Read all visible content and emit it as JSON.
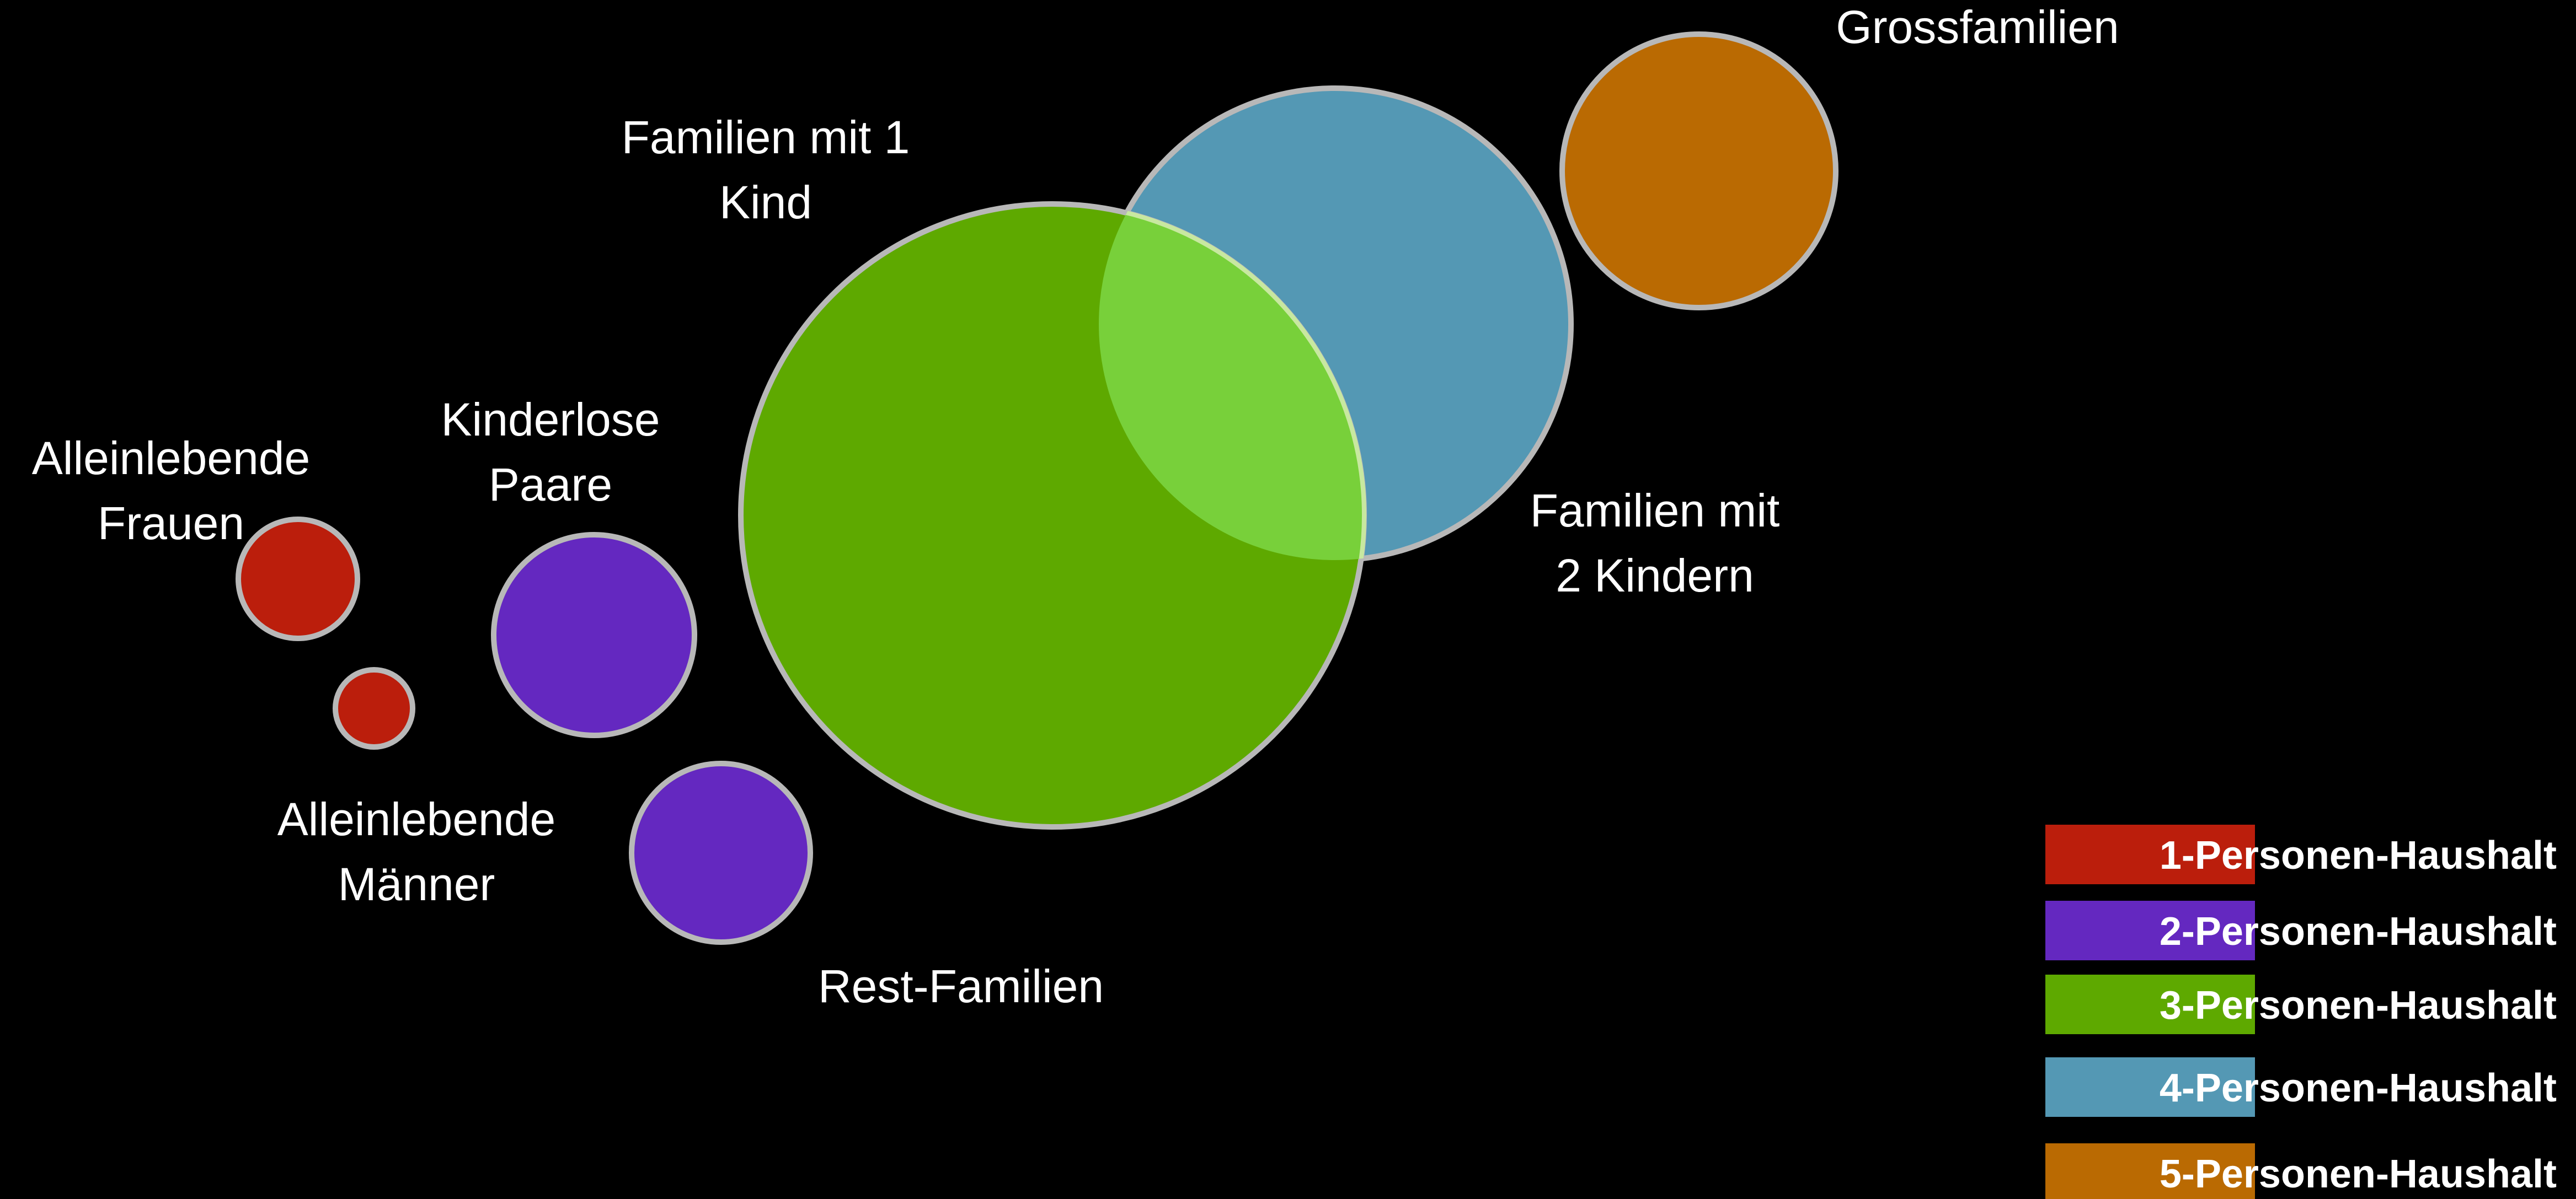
{
  "colors": {
    "background": "#000000",
    "outline": "#b8b8b8",
    "overlap": "#78d03a"
  },
  "groups": [
    {
      "id": "alleinlebende-frauen",
      "household_size": 1,
      "lines": [
        "Alleinlebende",
        "Frauen"
      ]
    },
    {
      "id": "alleinlebende-maenner",
      "household_size": 1,
      "lines": [
        "Alleinlebende",
        "Männer"
      ]
    },
    {
      "id": "kinderlose-paare",
      "household_size": 2,
      "lines": [
        "Kinderlose",
        "Paare"
      ]
    },
    {
      "id": "rest-familien",
      "household_size": 2,
      "lines": [
        "Rest-Familien"
      ]
    },
    {
      "id": "familien-mit-1-kind",
      "household_size": 3,
      "lines": [
        "Familien mit 1",
        "Kind"
      ]
    },
    {
      "id": "familien-mit-2-kindern",
      "household_size": 4,
      "lines": [
        "Familien mit",
        "2 Kindern"
      ]
    },
    {
      "id": "grossfamilien",
      "household_size": 5,
      "lines": [
        "Grossfamilien"
      ]
    }
  ],
  "legend": [
    {
      "household_size": 1,
      "label": "1-Personen-Haushalt",
      "color": "#bb1e0c"
    },
    {
      "household_size": 2,
      "label": "2-Personen-Haushalt",
      "color": "#6428c0"
    },
    {
      "household_size": 3,
      "label": "3-Personen-Haushalt",
      "color": "#5ea900"
    },
    {
      "household_size": 4,
      "label": "4-Personen-Haushalt",
      "color": "#5498b4"
    },
    {
      "household_size": 5,
      "label": "5-Personen-Haushalt",
      "color": "#ba6a02"
    }
  ]
}
